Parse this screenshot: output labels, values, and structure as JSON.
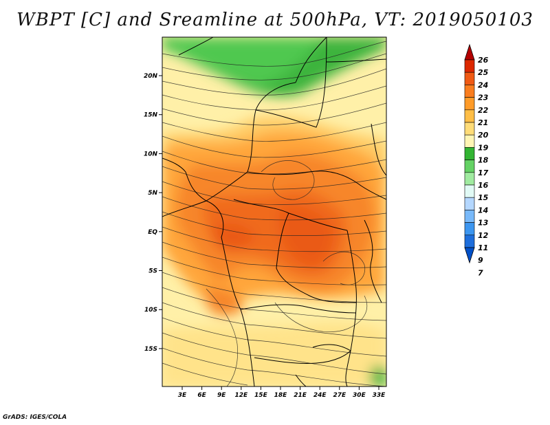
{
  "title": "WBPT [C] and Sreamline at 500hPa, VT: 2019050103",
  "footer": "GrADS: IGES/COLA",
  "map": {
    "lat_labels": [
      "20N",
      "15N",
      "10N",
      "5N",
      "EQ",
      "5S",
      "10S",
      "15S"
    ],
    "lon_labels": [
      "3E",
      "6E",
      "9E",
      "12E",
      "15E",
      "18E",
      "21E",
      "24E",
      "27E",
      "30E",
      "33E"
    ]
  },
  "colorbar": {
    "levels": [
      "26",
      "25",
      "24",
      "23",
      "22",
      "21",
      "20",
      "19",
      "18",
      "17",
      "16",
      "15",
      "14",
      "13",
      "12",
      "11",
      "9",
      "7"
    ],
    "colors": [
      "#b40000",
      "#dc2800",
      "#f05a14",
      "#fa7d1e",
      "#ff9b28",
      "#ffbe46",
      "#ffdc78",
      "#fff5b4",
      "#32b432",
      "#64d264",
      "#a0eba0",
      "#e1faf5",
      "#b4d7ff",
      "#78b9fa",
      "#3c96f0",
      "#1e6edc",
      "#0050c8"
    ]
  }
}
